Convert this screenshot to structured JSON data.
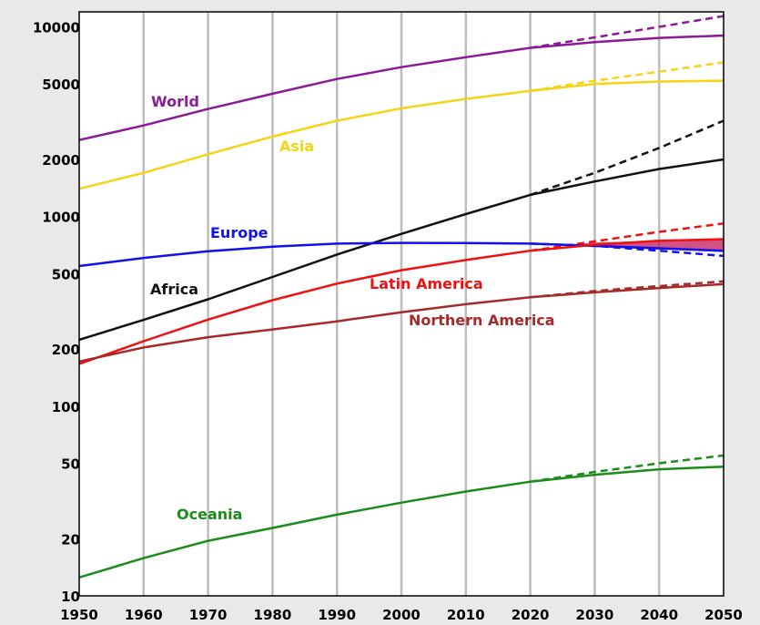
{
  "chart_data": {
    "type": "line",
    "title": "",
    "xlabel": "",
    "ylabel": "",
    "xlim": [
      1950,
      2050
    ],
    "ylim": [
      10,
      12000
    ],
    "y_scale": "log",
    "grid": true,
    "x_ticks": [
      1950,
      1960,
      1970,
      1980,
      1990,
      2000,
      2010,
      2020,
      2030,
      2040,
      2050
    ],
    "y_ticks": [
      10,
      20,
      50,
      100,
      200,
      500,
      1000,
      2000,
      5000,
      10000
    ],
    "x_tick_labels": [
      "1950",
      "1960",
      "1970",
      "1980",
      "1990",
      "2000",
      "2010",
      "2020",
      "2030",
      "2040",
      "2050"
    ],
    "y_tick_labels": [
      "10",
      "20",
      "50",
      "100",
      "200",
      "500",
      "1000",
      "2000",
      "5000",
      "10000"
    ],
    "series": [
      {
        "name": "World",
        "color": "#8b1a96",
        "x": [
          1950,
          1960,
          1970,
          1980,
          1990,
          2000,
          2010,
          2020,
          2030,
          2040,
          2050
        ],
        "values": [
          2530,
          3020,
          3690,
          4440,
          5310,
          6130,
          6920,
          7750,
          8300,
          8750,
          9000
        ],
        "projection_high_x": [
          2020,
          2030,
          2040,
          2050
        ],
        "projection_high": [
          7750,
          8800,
          10000,
          11400
        ]
      },
      {
        "name": "Asia",
        "color": "#f5d317",
        "x": [
          1950,
          1960,
          1970,
          1980,
          1990,
          2000,
          2010,
          2020,
          2030,
          2040,
          2050
        ],
        "values": [
          1400,
          1700,
          2130,
          2640,
          3200,
          3720,
          4170,
          4600,
          5000,
          5150,
          5200
        ],
        "projection_high_x": [
          2020,
          2030,
          2040,
          2050
        ],
        "projection_high": [
          4600,
          5200,
          5800,
          6500
        ]
      },
      {
        "name": "Africa",
        "color": "#111111",
        "x": [
          1950,
          1960,
          1970,
          1980,
          1990,
          2000,
          2010,
          2020,
          2030,
          2040,
          2050
        ],
        "values": [
          224,
          285,
          366,
          480,
          630,
          810,
          1030,
          1300,
          1530,
          1780,
          2000
        ],
        "projection_high_x": [
          2020,
          2030,
          2040,
          2050
        ],
        "projection_high": [
          1300,
          1700,
          2300,
          3200
        ]
      },
      {
        "name": "Europe",
        "color": "#1111ee",
        "x": [
          1950,
          1960,
          1970,
          1980,
          1990,
          2000,
          2010,
          2020,
          2030,
          2040,
          2050
        ],
        "values": [
          548,
          605,
          656,
          693,
          720,
          726,
          725,
          720,
          700,
          680,
          660
        ],
        "projection_low_x": [
          2020,
          2030,
          2040,
          2050
        ],
        "projection_low": [
          720,
          700,
          660,
          620
        ]
      },
      {
        "name": "Latin America",
        "color": "#ee1111",
        "x": [
          1950,
          1960,
          1970,
          1980,
          1990,
          2000,
          2010,
          2020,
          2030,
          2040,
          2050
        ],
        "values": [
          167,
          220,
          286,
          362,
          443,
          521,
          590,
          660,
          710,
          745,
          760
        ],
        "projection_high_x": [
          2020,
          2030,
          2040,
          2050
        ],
        "projection_high": [
          660,
          740,
          830,
          920
        ]
      },
      {
        "name": "Northern America",
        "color": "#a52a2a",
        "x": [
          1950,
          1960,
          1970,
          1980,
          1990,
          2000,
          2010,
          2020,
          2030,
          2040,
          2050
        ],
        "values": [
          172,
          204,
          231,
          254,
          280,
          313,
          345,
          375,
          398,
          420,
          440
        ],
        "projection_high_x": [
          2020,
          2030,
          2040,
          2050
        ],
        "projection_high": [
          375,
          405,
          430,
          455
        ]
      },
      {
        "name": "Oceania",
        "color": "#1a8c1a",
        "x": [
          1950,
          1960,
          1970,
          1980,
          1990,
          2000,
          2010,
          2020,
          2030,
          2040,
          2050
        ],
        "values": [
          12.5,
          15.8,
          19.5,
          22.8,
          26.8,
          31,
          35.5,
          40,
          43.5,
          46.5,
          48
        ],
        "projection_high_x": [
          2020,
          2030,
          2040,
          2050
        ],
        "projection_high": [
          40,
          45,
          50,
          55
        ]
      }
    ],
    "band": {
      "color": "#c2185b",
      "x": [
        2025,
        2030,
        2040,
        2050
      ],
      "low": [
        700,
        690,
        670,
        650
      ],
      "high": [
        705,
        730,
        745,
        760
      ]
    }
  }
}
